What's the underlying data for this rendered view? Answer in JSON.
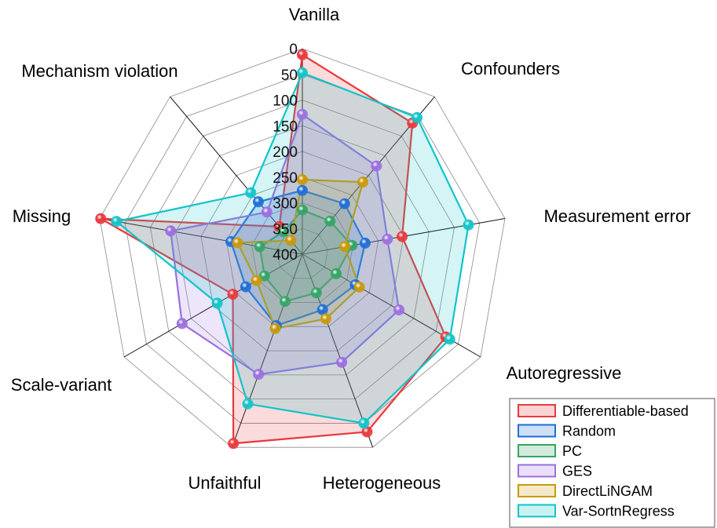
{
  "chart_data": {
    "type": "radar",
    "axes": [
      "Vanilla",
      "Confounders",
      "Measurement error",
      "Autoregressive",
      "Heterogeneous",
      "Unfaithful",
      "Scale-variant",
      "Missing",
      "Mechanism violation"
    ],
    "radial_ticks": [
      "0",
      "50",
      "100",
      "150",
      "200",
      "250",
      "300",
      "350",
      "400"
    ],
    "radial_range": [
      400,
      0
    ],
    "radial_reversed": true,
    "grid": true,
    "legend_position": "bottom-right",
    "series": [
      {
        "name": "Differentiable-based",
        "color": "#e8393c",
        "values": [
          12,
          67,
          203,
          78,
          32,
          8,
          244,
          2,
          330
        ]
      },
      {
        "name": "Random",
        "color": "#1f6fd6",
        "values": [
          276,
          272,
          276,
          281,
          285,
          252,
          273,
          259,
          267
        ]
      },
      {
        "name": "PC",
        "color": "#33a566",
        "values": [
          314,
          316,
          302,
          324,
          320,
          302,
          315,
          316,
          343
        ]
      },
      {
        "name": "GES",
        "color": "#9b6fe0",
        "values": [
          128,
          176,
          232,
          183,
          176,
          151,
          130,
          140,
          293
        ]
      },
      {
        "name": "DirectLiNGAM",
        "color": "#c9990a",
        "values": [
          255,
          217,
          316,
          272,
          266,
          246,
          297,
          272,
          365
        ]
      },
      {
        "name": "Var-SortnRegress",
        "color": "#12c4c8",
        "values": [
          47,
          53,
          72,
          69,
          50,
          90,
          209,
          33,
          244
        ]
      }
    ]
  }
}
